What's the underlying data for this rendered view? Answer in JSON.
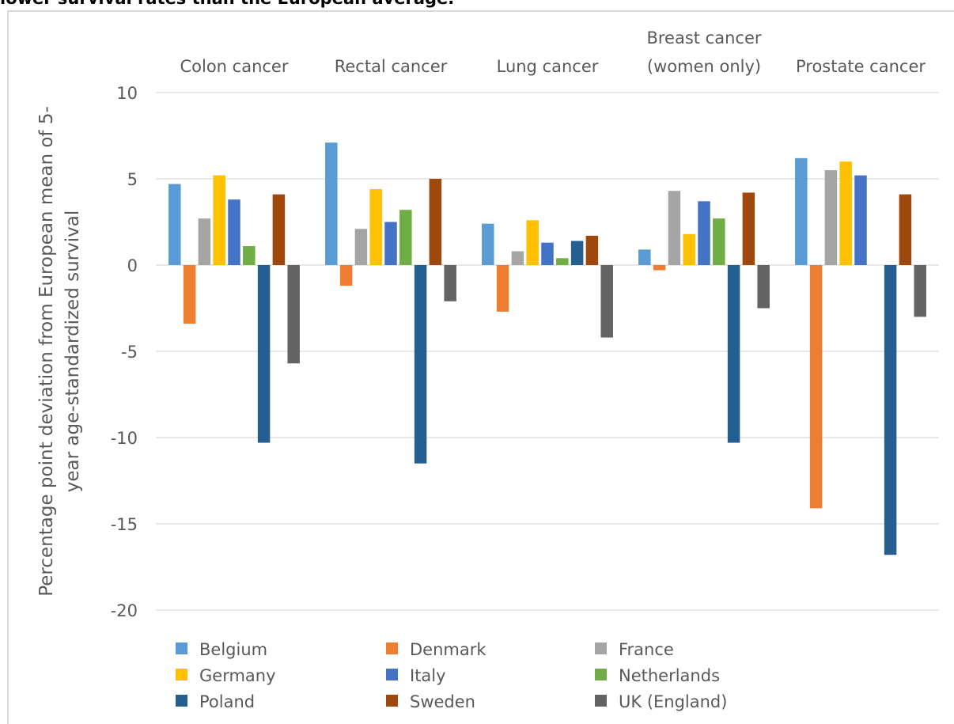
{
  "page": {
    "title_fragment": "lower survival rates than the European average."
  },
  "chart_data": {
    "type": "bar",
    "title": "",
    "ylabel": "Percentage point deviation from European mean of 5-year age-standardized survival",
    "ylabel_lines": [
      "Percentage point deviation from European mean of 5-",
      "year age-standardized survival"
    ],
    "xlabel": "",
    "ylim": [
      -20,
      10
    ],
    "yticks": [
      10,
      5,
      0,
      -5,
      -10,
      -15,
      -20
    ],
    "grid": true,
    "legend_position": "bottom-left",
    "categories": [
      "Colon cancer",
      "Rectal cancer",
      "Lung cancer",
      "Breast cancer (women only)",
      "Prostate cancer"
    ],
    "category_label_lines": [
      [
        "Colon cancer"
      ],
      [
        "Rectal cancer"
      ],
      [
        "Lung cancer"
      ],
      [
        "Breast cancer",
        "(women only)"
      ],
      [
        "Prostate cancer"
      ]
    ],
    "series": [
      {
        "name": "Belgium",
        "color": "#5b9bd5",
        "values": [
          4.7,
          7.1,
          2.4,
          0.9,
          6.2
        ]
      },
      {
        "name": "Denmark",
        "color": "#ed7d31",
        "values": [
          -3.4,
          -1.2,
          -2.7,
          -0.3,
          -14.1
        ]
      },
      {
        "name": "France",
        "color": "#a5a5a5",
        "values": [
          2.7,
          2.1,
          0.8,
          4.3,
          5.5
        ]
      },
      {
        "name": "Germany",
        "color": "#ffc000",
        "values": [
          5.2,
          4.4,
          2.6,
          1.8,
          6.0
        ]
      },
      {
        "name": "Italy",
        "color": "#4472c4",
        "values": [
          3.8,
          2.5,
          1.3,
          3.7,
          5.2
        ]
      },
      {
        "name": "Netherlands",
        "color": "#70ad47",
        "values": [
          1.1,
          3.2,
          0.4,
          2.7,
          0.0
        ]
      },
      {
        "name": "Poland",
        "color": "#255e91",
        "values": [
          -10.3,
          -11.5,
          1.4,
          -10.3,
          -16.8
        ]
      },
      {
        "name": "Sweden",
        "color": "#9e480e",
        "values": [
          4.1,
          5.0,
          1.7,
          4.2,
          4.1
        ]
      },
      {
        "name": "UK (England)",
        "color": "#636363",
        "values": [
          -5.7,
          -2.1,
          -4.2,
          -2.5,
          -3.0
        ]
      }
    ]
  }
}
